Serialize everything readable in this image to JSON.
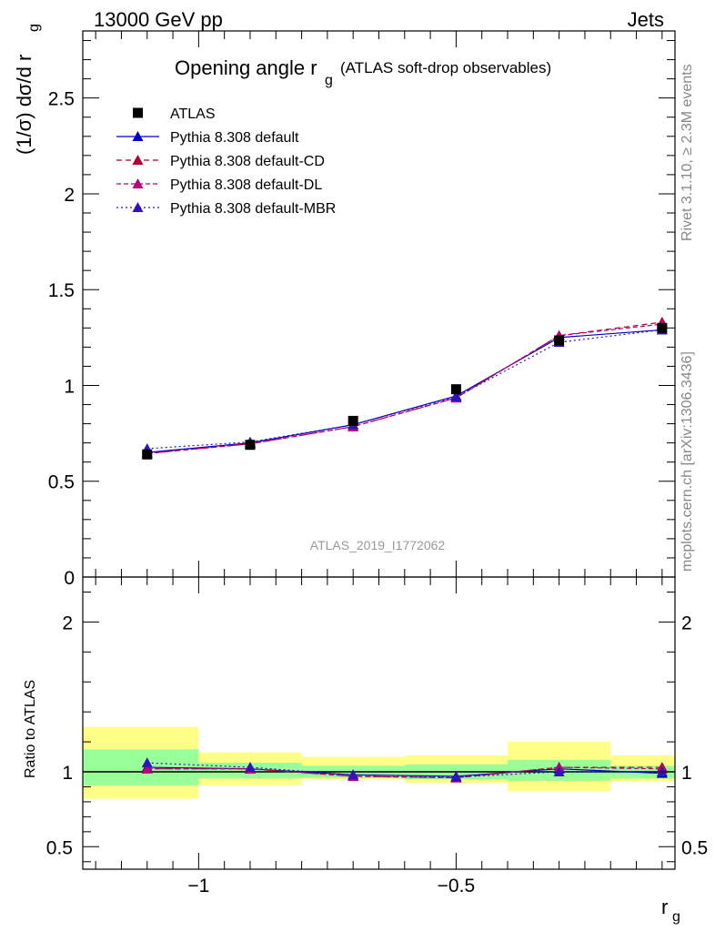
{
  "header": {
    "left": "13000 GeV pp",
    "right": "Jets"
  },
  "side_labels": {
    "rivet": "Rivet 3.1.10, ≥ 2.3M events",
    "mcplots": "mcplots.cern.ch [arXiv:1306.3436]"
  },
  "chart_data": {
    "type": "line",
    "title": "Opening angle r",
    "title_sub": "g",
    "title_suffix": "(ATLAS soft-drop observables)",
    "analysis_id": "ATLAS_2019_I1772062",
    "xlabel": "r",
    "xlabel_sub": "g",
    "ylabel": "(1/σ) dσ/d r",
    "ylabel_sub": "g",
    "ratio_ylabel": "Ratio to ATLAS",
    "xlim": [
      -1.225,
      -0.075
    ],
    "ylim": [
      0,
      2.85
    ],
    "ratio_ylim": [
      0.35,
      2.3
    ],
    "x_ticks": [
      -1,
      -0.5
    ],
    "x_tick_labels": [
      "−1",
      "−0.5"
    ],
    "y_ticks": [
      0.5,
      1,
      1.5,
      2,
      2.5
    ],
    "y_tick_labels": [
      "0.5",
      "1",
      "1.5",
      "2",
      "2.5"
    ],
    "y_zero_label": "0",
    "ratio_y_ticks": [
      0.5,
      1,
      2
    ],
    "ratio_y_tick_labels": [
      "0.5",
      "1",
      "2"
    ],
    "bin_edges": [
      -1.225,
      -1.0,
      -0.8,
      -0.6,
      -0.4,
      -0.2,
      -0.075
    ],
    "x": [
      -1.1,
      -0.9,
      -0.7,
      -0.5,
      -0.3,
      -0.1
    ],
    "data": {
      "name": "ATLAS",
      "values": [
        0.64,
        0.69,
        0.815,
        0.98,
        1.235,
        1.3
      ],
      "ratio_band_inner": [
        [
          0.91,
          1.15
        ],
        [
          0.955,
          1.06
        ],
        [
          0.96,
          1.04
        ],
        [
          0.95,
          1.05
        ],
        [
          0.94,
          1.08
        ],
        [
          0.955,
          1.04
        ]
      ],
      "ratio_band_outer": [
        [
          0.82,
          1.3
        ],
        [
          0.91,
          1.13
        ],
        [
          0.95,
          1.1
        ],
        [
          0.925,
          1.11
        ],
        [
          0.87,
          1.2
        ],
        [
          0.935,
          1.11
        ]
      ]
    },
    "series": [
      {
        "name": "Pythia 8.308 default",
        "color": "#0000cc",
        "dash": "",
        "values": [
          0.65,
          0.7,
          0.795,
          0.945,
          1.25,
          1.29
        ],
        "ratio": [
          1.03,
          1.02,
          0.98,
          0.97,
          1.02,
          0.99
        ]
      },
      {
        "name": "Pythia 8.308 default-CD",
        "color": "#aa0033",
        "dash": "6,4",
        "values": [
          0.645,
          0.695,
          0.785,
          0.935,
          1.26,
          1.33
        ],
        "ratio": [
          1.02,
          1.02,
          0.97,
          0.96,
          1.03,
          1.03
        ]
      },
      {
        "name": "Pythia 8.308 default-DL",
        "color": "#bb0077",
        "dash": "5,3",
        "values": [
          0.645,
          0.695,
          0.785,
          0.935,
          1.26,
          1.32
        ],
        "ratio": [
          1.02,
          1.02,
          0.97,
          0.96,
          1.03,
          1.02
        ]
      },
      {
        "name": "Pythia 8.308 default-MBR",
        "color": "#3311bb",
        "dash": "2,3",
        "values": [
          0.67,
          0.705,
          0.795,
          0.94,
          1.225,
          1.29
        ],
        "ratio": [
          1.06,
          1.03,
          0.98,
          0.965,
          1.0,
          1.0
        ]
      }
    ]
  }
}
